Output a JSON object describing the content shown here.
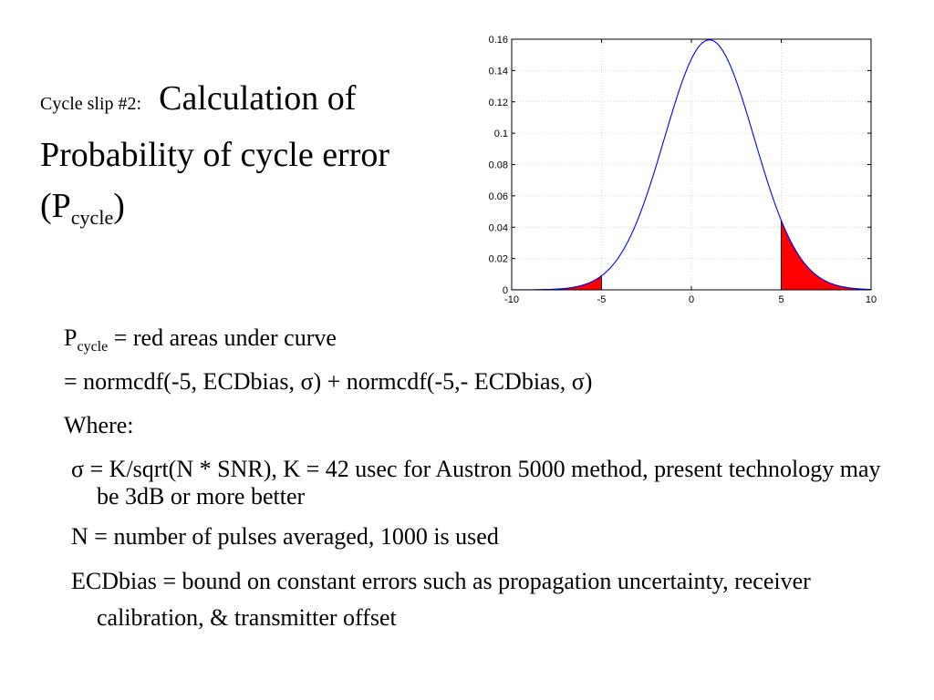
{
  "title": {
    "prefix": "Cycle slip #2:",
    "main": "Calculation of Probability of cycle error (P",
    "sub": "cycle",
    "close": ")"
  },
  "body": {
    "line1_p": "P",
    "line1_sub": "cycle",
    "line1_rest": " = red areas under curve",
    "line2": "=  normcdf(-5, ECDbias, σ) + normcdf(-5,- ECDbias, σ)",
    "line3": "Where:",
    "line4": "σ = K/sqrt(N * SNR), K = 42 usec for Austron 5000 method, present technology may be 3dB or more better",
    "line5": "N = number of pulses averaged, 1000 is used",
    "line6": "ECDbias = bound on constant errors such as propagation uncertainty, receiver calibration, & transmitter offset"
  },
  "chart_data": {
    "type": "area",
    "title": "",
    "xlabel": "",
    "ylabel": "",
    "xlim": [
      -10,
      10
    ],
    "ylim": [
      0,
      0.16
    ],
    "xticks": [
      -10,
      -5,
      0,
      5,
      10
    ],
    "xtick_labels": [
      "-10",
      "-5",
      "0",
      "5",
      "10"
    ],
    "yticks": [
      0,
      0.02,
      0.04,
      0.06,
      0.08,
      0.1,
      0.12,
      0.14,
      0.16
    ],
    "ytick_labels": [
      "0",
      "0.02",
      "0.04",
      "0.06",
      "0.08",
      "0.1",
      "0.12",
      "0.14",
      "0.16"
    ],
    "grid": true,
    "curve": {
      "distribution": "normal",
      "mean": 1,
      "sigma": 2.5,
      "color": "#0000ff"
    },
    "shaded_regions": [
      {
        "from": -10,
        "to": -5,
        "color": "#ff0000"
      },
      {
        "from": 5,
        "to": 10,
        "color": "#ff0000"
      }
    ]
  }
}
